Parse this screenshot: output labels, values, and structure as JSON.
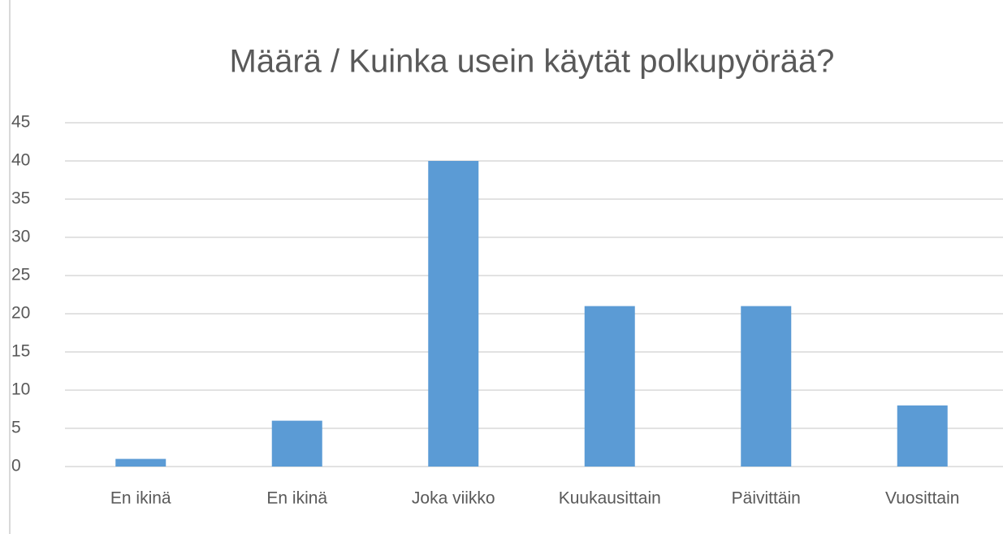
{
  "chart_data": {
    "type": "bar",
    "title": "Määrä  / Kuinka usein käytät polkupyörää?",
    "categories": [
      "En ikinä",
      "En ikinä",
      "Joka viikko",
      "Kuukausittain",
      "Päivittäin",
      "Vuosittain"
    ],
    "values": [
      1,
      6,
      40,
      21,
      21,
      8
    ],
    "color": "#5b9bd5",
    "ylim": [
      0,
      45
    ],
    "yticks": [
      0,
      5,
      10,
      15,
      20,
      25,
      30,
      35,
      40,
      45
    ],
    "grid": true
  }
}
